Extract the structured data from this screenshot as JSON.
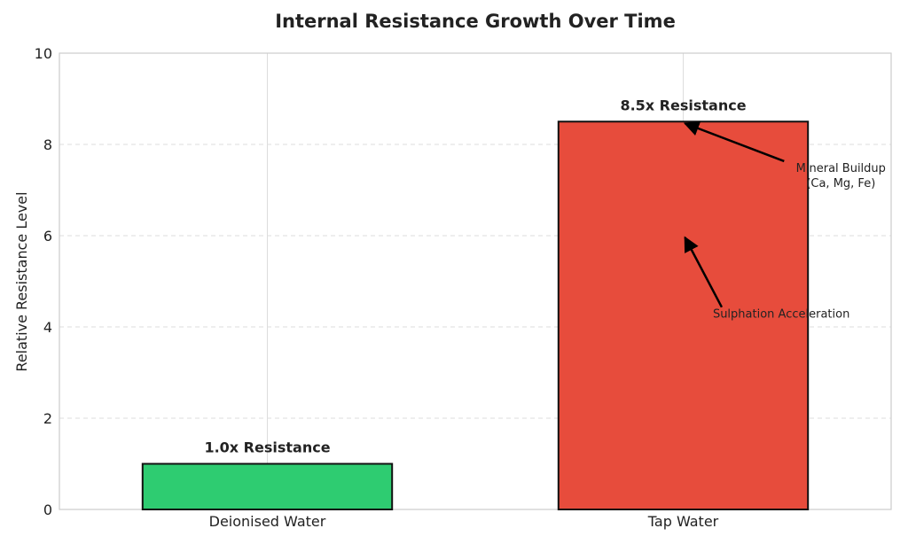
{
  "chart_data": {
    "type": "bar",
    "title": "Internal Resistance Growth Over Time",
    "xlabel": "",
    "ylabel": "Relative Resistance Level",
    "ylim": [
      0,
      10
    ],
    "yticks": [
      0,
      2,
      4,
      6,
      8,
      10
    ],
    "grid": true,
    "categories": [
      "Deionised Water",
      "Tap Water"
    ],
    "values": [
      1.0,
      8.5
    ],
    "colors": [
      "#2ecc71",
      "#e74c3c"
    ],
    "data_labels": [
      "1.0x Resistance",
      "8.5x Resistance"
    ],
    "annotations": [
      {
        "lines": [
          "Mineral Buildup",
          "(Ca, Mg, Fe)"
        ],
        "category": "Tap Water",
        "text_y": 7.4,
        "text_offset": 0.2,
        "arrow_y": 8.5,
        "arrow_offset": 0.0
      },
      {
        "lines": [
          "Sulphation Acceleration"
        ],
        "category": "Tap Water",
        "text_y": 4.2,
        "text_offset": 0.05,
        "arrow_y": 6.0,
        "arrow_offset": 0.0
      }
    ]
  }
}
